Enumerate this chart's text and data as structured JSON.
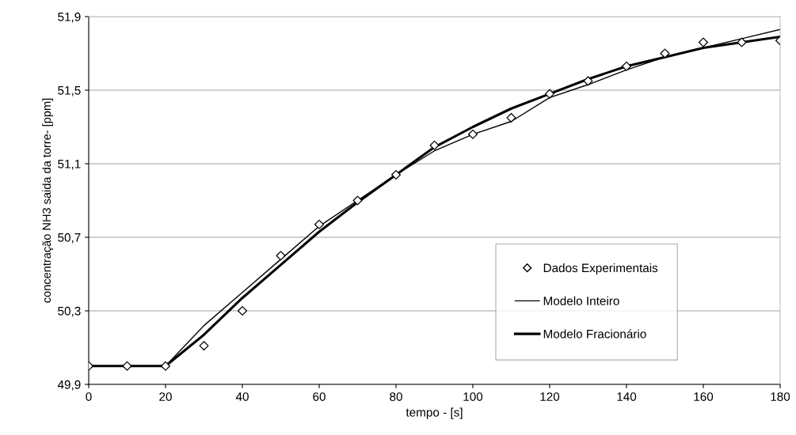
{
  "chart_data": {
    "type": "line",
    "xlabel": "tempo - [s]",
    "ylabel": "concentração NH3 saida da torre- [ppm]",
    "x": [
      0,
      10,
      20,
      30,
      40,
      50,
      60,
      70,
      80,
      90,
      100,
      110,
      120,
      130,
      140,
      150,
      160,
      170,
      180
    ],
    "series": [
      {
        "name": "Dados Experimentais",
        "type": "scatter",
        "color": "#000000",
        "marker": "diamond",
        "values": [
          50.0,
          50.0,
          50.0,
          50.11,
          50.3,
          50.6,
          50.77,
          50.9,
          51.04,
          51.2,
          51.26,
          51.35,
          51.48,
          51.55,
          51.63,
          51.7,
          51.76,
          51.76,
          51.77
        ]
      },
      {
        "name": "Modelo Inteiro",
        "color": "#000000",
        "values": [
          50.0,
          50.0,
          50.0,
          50.22,
          50.4,
          50.58,
          50.76,
          50.9,
          51.04,
          51.17,
          51.26,
          51.33,
          51.46,
          51.53,
          51.61,
          51.68,
          51.73,
          51.78,
          51.83
        ]
      },
      {
        "name": "Modelo Fracionário",
        "color": "#000000",
        "values": [
          50.0,
          50.0,
          50.0,
          50.17,
          50.37,
          50.55,
          50.73,
          50.89,
          51.04,
          51.19,
          51.3,
          51.4,
          51.48,
          51.56,
          51.63,
          51.68,
          51.73,
          51.76,
          51.79
        ]
      }
    ],
    "xlim": [
      0,
      180
    ],
    "xticks": [
      0,
      20,
      40,
      60,
      80,
      100,
      120,
      140,
      160,
      180
    ],
    "ylim": [
      49.9,
      51.9
    ],
    "yticks": [
      {
        "value": 49.9,
        "label": "49,9"
      },
      {
        "value": 50.3,
        "label": "50,3"
      },
      {
        "value": 50.7,
        "label": "50,7"
      },
      {
        "value": 51.1,
        "label": "51,1"
      },
      {
        "value": 51.5,
        "label": "51,5"
      },
      {
        "value": 51.9,
        "label": "51,9"
      }
    ],
    "grid": "y",
    "legend": "bottom right"
  }
}
